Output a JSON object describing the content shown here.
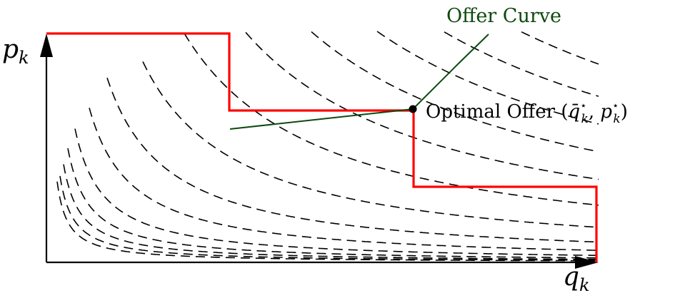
{
  "labels": {
    "y_axis": {
      "base": "p",
      "sub": "k"
    },
    "x_axis": {
      "base": "q",
      "sub": "k"
    },
    "offer_curve": "Offer Curve",
    "optimal_offer": {
      "text": "Optimal Offer (",
      "q_base": "q̄",
      "q_sup": "⋆",
      "q_sub": "k",
      "sep": ", ",
      "p_base": "p",
      "p_sup": "⋆",
      "p_sub": "k",
      "close": ")"
    }
  },
  "colors": {
    "axis": "#000000",
    "indifference_curves": "#000000",
    "step_offer": "#ff0000",
    "offer_curve": "#0d4a0d",
    "optimal_point": "#000000"
  },
  "elements": {
    "indifference_curves_style": "dashed",
    "step_offer_segments": 3,
    "optimal_point": "marked"
  }
}
